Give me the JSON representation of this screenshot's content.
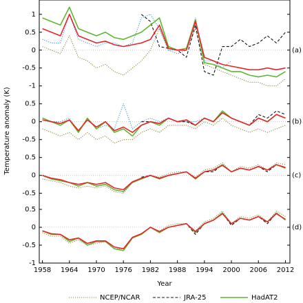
{
  "figure": {
    "ylabel": "Temperature anomaly (K)",
    "xlabel": "Year"
  },
  "chart_data": [
    {
      "type": "line",
      "label": "(a)",
      "xlim": [
        1957.3,
        2013.0
      ],
      "ylim": [
        -1.1,
        1.4
      ],
      "yticks": [
        1,
        0.5,
        0,
        -0.5,
        -1
      ],
      "x": [
        1958,
        1960,
        1962,
        1964,
        1966,
        1968,
        1970,
        1972,
        1974,
        1976,
        1978,
        1980,
        1982,
        1984,
        1986,
        1988,
        1990,
        1992,
        1994,
        1996,
        1998,
        2000,
        2002,
        2004,
        2006,
        2008,
        2010,
        2012
      ],
      "series": [
        {
          "name": "NCEP/NCAR",
          "color": "#8a8a3c",
          "dash": "dotted",
          "values": [
            0.1,
            0,
            -0.1,
            0.4,
            -0.2,
            -0.3,
            -0.5,
            -0.4,
            -0.6,
            -0.7,
            -0.5,
            -0.3,
            0,
            0.6,
            0,
            -0.1,
            0,
            0.6,
            -0.4,
            -0.5,
            -0.6,
            -0.7,
            -0.8,
            -0.9,
            -0.9,
            -1.0,
            -1.0,
            -0.8
          ]
        },
        {
          "color": "#3aa0d0",
          "dash": "dotted",
          "values": [
            0.3,
            0.2,
            0.2,
            1.0,
            0.3,
            0.2,
            0.1,
            0.2,
            0.2,
            0.1,
            0.2,
            0.9,
            1.0,
            0.6,
            0,
            0,
            0,
            0.9,
            -0.3,
            -0.3,
            -0.5,
            -0.3,
            null,
            null,
            null,
            null,
            null,
            null
          ]
        },
        {
          "name": "JRA-25",
          "color": "#111111",
          "dash": "dashed",
          "values": [
            null,
            null,
            null,
            null,
            null,
            null,
            null,
            null,
            null,
            null,
            null,
            1.0,
            0.8,
            0.1,
            0.05,
            0,
            -0.2,
            0.7,
            -0.6,
            -0.7,
            0.1,
            0.1,
            0.3,
            0.1,
            0.2,
            0.4,
            0.2,
            0.5
          ]
        },
        {
          "name": "HadAT2",
          "color": "#5cb82e",
          "dash": "solid",
          "values": [
            0.9,
            0.8,
            0.7,
            1.2,
            0.6,
            0.5,
            0.4,
            0.5,
            0.35,
            0.3,
            0.4,
            0.5,
            0.7,
            0.9,
            0.1,
            0,
            0.05,
            0.85,
            -0.35,
            -0.4,
            -0.5,
            -0.6,
            -0.6,
            -0.7,
            -0.75,
            -0.7,
            -0.75,
            -0.6
          ]
        },
        {
          "color": "#e8242a",
          "dash": "solid",
          "values": [
            0.6,
            0.5,
            0.4,
            1.0,
            0.4,
            0.3,
            0.2,
            0.25,
            0.15,
            0.1,
            0.15,
            0.2,
            0.3,
            0.7,
            0.05,
            0,
            0,
            0.8,
            -0.2,
            -0.3,
            -0.4,
            -0.45,
            -0.5,
            -0.55,
            -0.55,
            -0.5,
            -0.55,
            -0.5
          ]
        }
      ]
    },
    {
      "type": "line",
      "label": "(b)",
      "xlim": [
        1957.3,
        2013.0
      ],
      "ylim": [
        -0.8,
        0.9
      ],
      "yticks": [
        0.5,
        0,
        -0.5
      ],
      "x": [
        1958,
        1960,
        1962,
        1964,
        1966,
        1968,
        1970,
        1972,
        1974,
        1976,
        1978,
        1980,
        1982,
        1984,
        1986,
        1988,
        1990,
        1992,
        1994,
        1996,
        1998,
        2000,
        2002,
        2004,
        2006,
        2008,
        2010,
        2012
      ],
      "series": [
        {
          "name": "NCEP/NCAR",
          "color": "#8a8a3c",
          "dash": "dotted",
          "values": [
            -0.2,
            -0.3,
            -0.4,
            -0.3,
            -0.5,
            -0.3,
            -0.5,
            -0.4,
            -0.6,
            -0.5,
            -0.5,
            -0.3,
            -0.2,
            -0.3,
            -0.1,
            -0.1,
            -0.1,
            -0.2,
            0,
            -0.1,
            0.1,
            -0.1,
            -0.2,
            -0.3,
            -0.2,
            -0.3,
            -0.2,
            -0.1
          ]
        },
        {
          "color": "#3aa0d0",
          "dash": "dotted",
          "values": [
            0.1,
            0,
            0,
            0.1,
            -0.3,
            0.1,
            -0.2,
            -0.1,
            -0.2,
            0.5,
            -0.2,
            0,
            0.1,
            0,
            0.1,
            0,
            0,
            0,
            0.1,
            0,
            0.3,
            0.1,
            null,
            null,
            null,
            null,
            null,
            null
          ]
        },
        {
          "name": "JRA-25",
          "color": "#111111",
          "dash": "dashed",
          "values": [
            null,
            null,
            null,
            null,
            null,
            null,
            null,
            null,
            null,
            null,
            null,
            0,
            0,
            -0.1,
            0.1,
            0,
            0,
            -0.1,
            0.1,
            0,
            0.3,
            0.1,
            0,
            -0.1,
            0.2,
            0.1,
            0.3,
            0.2
          ]
        },
        {
          "name": "HadAT2",
          "color": "#5cb82e",
          "dash": "solid",
          "values": [
            0.1,
            0,
            -0.1,
            0.05,
            -0.3,
            0.1,
            -0.2,
            0,
            -0.3,
            -0.2,
            -0.4,
            -0.1,
            0,
            -0.1,
            0.1,
            0,
            0.05,
            -0.1,
            0.1,
            0,
            0.3,
            0.1,
            0,
            -0.1,
            0.1,
            0,
            0.2,
            0.1
          ]
        },
        {
          "color": "#e8242a",
          "dash": "solid",
          "values": [
            0.05,
            0,
            -0.05,
            0.05,
            -0.25,
            0.05,
            -0.15,
            0,
            -0.25,
            -0.15,
            -0.3,
            -0.1,
            0,
            -0.05,
            0.1,
            0,
            0.05,
            -0.1,
            0.1,
            0,
            0.25,
            0.1,
            0,
            -0.1,
            0.1,
            0,
            0.2,
            0.1
          ]
        }
      ]
    },
    {
      "type": "line",
      "label": "(c)",
      "xlim": [
        1957.3,
        2013.0
      ],
      "ylim": [
        -0.7,
        0.7
      ],
      "yticks": [
        0.5,
        0,
        -0.5
      ],
      "x": [
        1958,
        1960,
        1962,
        1964,
        1966,
        1968,
        1970,
        1972,
        1974,
        1976,
        1978,
        1980,
        1982,
        1984,
        1986,
        1988,
        1990,
        1992,
        1994,
        1996,
        1998,
        2000,
        2002,
        2004,
        2006,
        2008,
        2010,
        2012
      ],
      "series": [
        {
          "name": "NCEP/NCAR",
          "color": "#8a8a3c",
          "dash": "dotted",
          "values": [
            -0.1,
            -0.15,
            -0.2,
            -0.3,
            -0.35,
            -0.3,
            -0.35,
            -0.3,
            -0.45,
            -0.5,
            -0.2,
            -0.1,
            0,
            -0.05,
            0.05,
            0.1,
            0.1,
            -0.05,
            0.15,
            0.2,
            0.35,
            0.1,
            0.25,
            0.2,
            0.3,
            0.15,
            0.35,
            0.3
          ]
        },
        {
          "name": "JRA-25",
          "color": "#111111",
          "dash": "dashed",
          "values": [
            null,
            null,
            null,
            null,
            null,
            null,
            null,
            null,
            null,
            null,
            null,
            -0.05,
            0,
            -0.1,
            0,
            0.05,
            0.1,
            -0.1,
            0.1,
            0.1,
            0.3,
            0.1,
            0.2,
            0.15,
            0.25,
            0.1,
            0.3,
            0.2
          ]
        },
        {
          "name": "HadAT2",
          "color": "#5cb82e",
          "dash": "solid",
          "values": [
            0,
            -0.1,
            -0.15,
            -0.2,
            -0.3,
            -0.2,
            -0.3,
            -0.25,
            -0.4,
            -0.45,
            -0.2,
            -0.1,
            0,
            -0.1,
            0,
            0.05,
            0.1,
            -0.1,
            0.1,
            0.15,
            0.3,
            0.1,
            0.2,
            0.15,
            0.25,
            0.15,
            0.3,
            0.2
          ]
        },
        {
          "color": "#e8242a",
          "dash": "solid",
          "values": [
            0,
            -0.08,
            -0.12,
            -0.2,
            -0.25,
            -0.2,
            -0.25,
            -0.2,
            -0.35,
            -0.4,
            -0.18,
            -0.08,
            0,
            -0.08,
            0,
            0.05,
            0.1,
            -0.08,
            0.1,
            0.15,
            0.28,
            0.1,
            0.2,
            0.15,
            0.25,
            0.15,
            0.3,
            0.22
          ]
        }
      ]
    },
    {
      "type": "line",
      "label": "(d)",
      "xlim": [
        1957.3,
        2013.0
      ],
      "ylim": [
        -1.0,
        0.75
      ],
      "yticks": [
        0.5,
        0,
        -0.5,
        -1
      ],
      "xticks": [
        1958,
        1964,
        1970,
        1976,
        1982,
        1988,
        1994,
        2000,
        2006,
        2012
      ],
      "x": [
        1958,
        1960,
        1962,
        1964,
        1966,
        1968,
        1970,
        1972,
        1974,
        1976,
        1978,
        1980,
        1982,
        1984,
        1986,
        1988,
        1990,
        1992,
        1994,
        1996,
        1998,
        2000,
        2002,
        2004,
        2006,
        2008,
        2010,
        2012
      ],
      "series": [
        {
          "name": "NCEP/NCAR",
          "color": "#8a8a3c",
          "dash": "dotted",
          "values": [
            -0.15,
            -0.25,
            -0.25,
            -0.45,
            -0.35,
            -0.5,
            -0.45,
            -0.4,
            -0.6,
            -0.6,
            -0.3,
            -0.2,
            0,
            -0.1,
            0.05,
            0.1,
            0.1,
            -0.1,
            0.15,
            0.25,
            0.45,
            0.1,
            0.3,
            0.25,
            0.35,
            0.15,
            0.45,
            0.3
          ]
        },
        {
          "name": "JRA-25",
          "color": "#111111",
          "dash": "dashed",
          "values": [
            null,
            null,
            null,
            null,
            null,
            null,
            null,
            null,
            null,
            null,
            null,
            -0.2,
            0,
            -0.15,
            0,
            0.05,
            0.1,
            -0.2,
            0.1,
            0.2,
            0.4,
            0.05,
            0.25,
            0.2,
            0.3,
            0.1,
            0.4,
            0.2
          ]
        },
        {
          "name": "HadAT2",
          "color": "#5cb82e",
          "dash": "solid",
          "values": [
            -0.1,
            -0.2,
            -0.2,
            -0.4,
            -0.3,
            -0.5,
            -0.4,
            -0.4,
            -0.6,
            -0.65,
            -0.3,
            -0.2,
            0,
            -0.15,
            0,
            0.05,
            0.1,
            -0.15,
            0.1,
            0.2,
            0.4,
            0.1,
            0.25,
            0.2,
            0.3,
            0.15,
            0.4,
            0.2
          ]
        },
        {
          "color": "#e8242a",
          "dash": "solid",
          "values": [
            -0.1,
            -0.18,
            -0.2,
            -0.35,
            -0.3,
            -0.45,
            -0.38,
            -0.38,
            -0.55,
            -0.6,
            -0.28,
            -0.18,
            0,
            -0.12,
            0,
            0.05,
            0.1,
            -0.12,
            0.1,
            0.2,
            0.38,
            0.1,
            0.25,
            0.2,
            0.3,
            0.15,
            0.38,
            0.22
          ]
        }
      ]
    }
  ]
}
